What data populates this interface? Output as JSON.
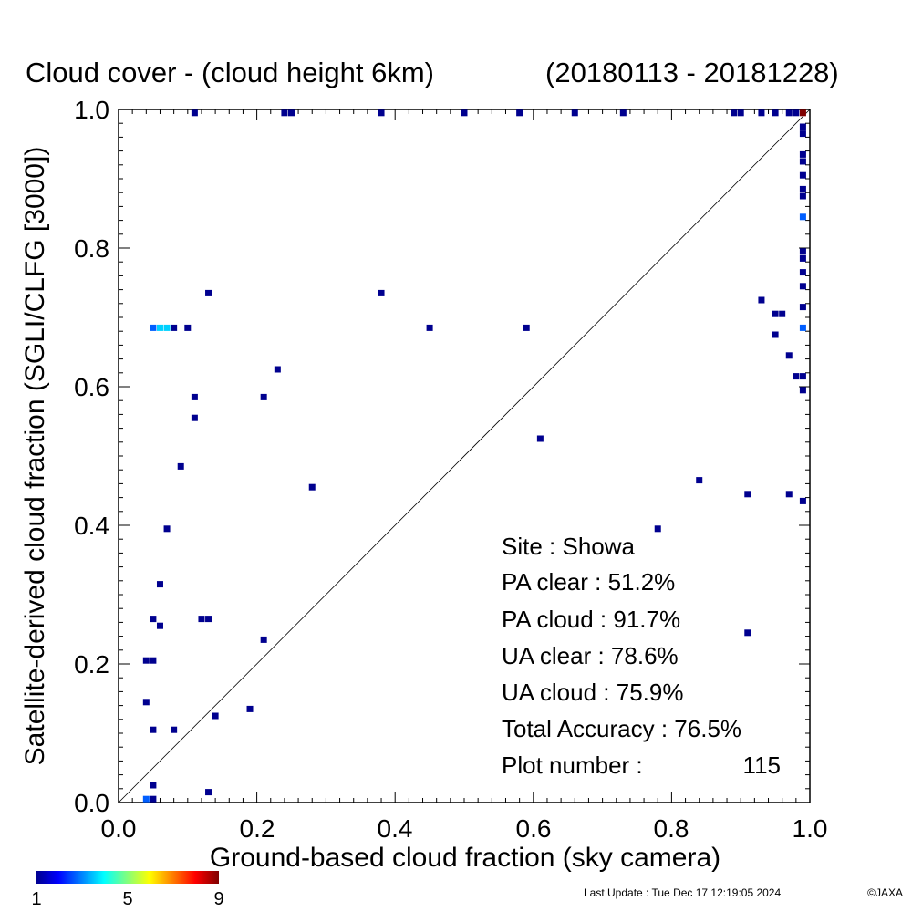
{
  "chart_data": {
    "type": "heatmap",
    "title": "Cloud cover - (cloud height 6km)",
    "period": "(20180113 - 20181228)",
    "xlabel": "Ground-based cloud fraction (sky camera)",
    "ylabel": "Satellite-derived cloud fraction (SGLI/CLFG [3000])",
    "xlim": [
      0.0,
      1.0
    ],
    "ylim": [
      0.0,
      1.0
    ],
    "x_ticks": [
      "0.0",
      "0.2",
      "0.4",
      "0.6",
      "0.8",
      "1.0"
    ],
    "y_ticks": [
      "0.0",
      "0.2",
      "0.4",
      "0.6",
      "0.8",
      "1.0"
    ],
    "reference_line": "1:1 diagonal",
    "colorbar": {
      "min": 1,
      "max": 9,
      "ticks": [
        "1",
        "5",
        "9"
      ]
    },
    "points": [
      {
        "x": 0.04,
        "y": 0.005,
        "count": 2
      },
      {
        "x": 0.05,
        "y": 0.005,
        "count": 1
      },
      {
        "x": 0.05,
        "y": 0.025,
        "count": 1
      },
      {
        "x": 0.13,
        "y": 0.015,
        "count": 1
      },
      {
        "x": 0.05,
        "y": 0.105,
        "count": 1
      },
      {
        "x": 0.08,
        "y": 0.105,
        "count": 1
      },
      {
        "x": 0.04,
        "y": 0.145,
        "count": 1
      },
      {
        "x": 0.14,
        "y": 0.125,
        "count": 1
      },
      {
        "x": 0.19,
        "y": 0.135,
        "count": 1
      },
      {
        "x": 0.04,
        "y": 0.205,
        "count": 1
      },
      {
        "x": 0.05,
        "y": 0.205,
        "count": 1
      },
      {
        "x": 0.21,
        "y": 0.235,
        "count": 1
      },
      {
        "x": 0.05,
        "y": 0.265,
        "count": 1
      },
      {
        "x": 0.06,
        "y": 0.255,
        "count": 1
      },
      {
        "x": 0.12,
        "y": 0.265,
        "count": 1
      },
      {
        "x": 0.13,
        "y": 0.265,
        "count": 1
      },
      {
        "x": 0.06,
        "y": 0.315,
        "count": 1
      },
      {
        "x": 0.07,
        "y": 0.395,
        "count": 1
      },
      {
        "x": 0.09,
        "y": 0.485,
        "count": 1
      },
      {
        "x": 0.11,
        "y": 0.555,
        "count": 1
      },
      {
        "x": 0.11,
        "y": 0.585,
        "count": 1
      },
      {
        "x": 0.21,
        "y": 0.585,
        "count": 1
      },
      {
        "x": 0.23,
        "y": 0.625,
        "count": 1
      },
      {
        "x": 0.28,
        "y": 0.455,
        "count": 1
      },
      {
        "x": 0.05,
        "y": 0.685,
        "count": 2
      },
      {
        "x": 0.06,
        "y": 0.685,
        "count": 3
      },
      {
        "x": 0.07,
        "y": 0.685,
        "count": 3
      },
      {
        "x": 0.08,
        "y": 0.685,
        "count": 1
      },
      {
        "x": 0.1,
        "y": 0.685,
        "count": 1
      },
      {
        "x": 0.13,
        "y": 0.735,
        "count": 1
      },
      {
        "x": 0.38,
        "y": 0.735,
        "count": 1
      },
      {
        "x": 0.45,
        "y": 0.685,
        "count": 1
      },
      {
        "x": 0.59,
        "y": 0.685,
        "count": 1
      },
      {
        "x": 0.61,
        "y": 0.525,
        "count": 1
      },
      {
        "x": 0.78,
        "y": 0.395,
        "count": 1
      },
      {
        "x": 0.84,
        "y": 0.465,
        "count": 1
      },
      {
        "x": 0.91,
        "y": 0.445,
        "count": 1
      },
      {
        "x": 0.91,
        "y": 0.245,
        "count": 1
      },
      {
        "x": 0.93,
        "y": 0.725,
        "count": 1
      },
      {
        "x": 0.95,
        "y": 0.705,
        "count": 1
      },
      {
        "x": 0.96,
        "y": 0.705,
        "count": 1
      },
      {
        "x": 0.95,
        "y": 0.675,
        "count": 1
      },
      {
        "x": 0.97,
        "y": 0.645,
        "count": 1
      },
      {
        "x": 0.97,
        "y": 0.445,
        "count": 1
      },
      {
        "x": 0.98,
        "y": 0.615,
        "count": 1
      },
      {
        "x": 0.99,
        "y": 0.615,
        "count": 1
      },
      {
        "x": 0.99,
        "y": 0.435,
        "count": 1
      },
      {
        "x": 0.99,
        "y": 0.595,
        "count": 1
      },
      {
        "x": 0.99,
        "y": 0.685,
        "count": 2
      },
      {
        "x": 0.99,
        "y": 0.715,
        "count": 1
      },
      {
        "x": 0.99,
        "y": 0.745,
        "count": 1
      },
      {
        "x": 0.99,
        "y": 0.765,
        "count": 1
      },
      {
        "x": 0.99,
        "y": 0.785,
        "count": 1
      },
      {
        "x": 0.99,
        "y": 0.795,
        "count": 1
      },
      {
        "x": 0.99,
        "y": 0.845,
        "count": 2
      },
      {
        "x": 0.99,
        "y": 0.875,
        "count": 1
      },
      {
        "x": 0.99,
        "y": 0.885,
        "count": 1
      },
      {
        "x": 0.99,
        "y": 0.905,
        "count": 1
      },
      {
        "x": 0.99,
        "y": 0.925,
        "count": 1
      },
      {
        "x": 0.99,
        "y": 0.935,
        "count": 1
      },
      {
        "x": 0.99,
        "y": 0.965,
        "count": 1
      },
      {
        "x": 0.99,
        "y": 0.975,
        "count": 1
      },
      {
        "x": 0.11,
        "y": 0.995,
        "count": 1
      },
      {
        "x": 0.24,
        "y": 0.995,
        "count": 1
      },
      {
        "x": 0.25,
        "y": 0.995,
        "count": 1
      },
      {
        "x": 0.38,
        "y": 0.995,
        "count": 1
      },
      {
        "x": 0.5,
        "y": 0.995,
        "count": 1
      },
      {
        "x": 0.58,
        "y": 0.995,
        "count": 1
      },
      {
        "x": 0.66,
        "y": 0.995,
        "count": 1
      },
      {
        "x": 0.73,
        "y": 0.995,
        "count": 1
      },
      {
        "x": 0.89,
        "y": 0.995,
        "count": 1
      },
      {
        "x": 0.9,
        "y": 0.995,
        "count": 1
      },
      {
        "x": 0.93,
        "y": 0.995,
        "count": 1
      },
      {
        "x": 0.95,
        "y": 0.995,
        "count": 1
      },
      {
        "x": 0.97,
        "y": 0.995,
        "count": 1
      },
      {
        "x": 0.98,
        "y": 0.995,
        "count": 1
      },
      {
        "x": 0.99,
        "y": 0.995,
        "count": 9
      }
    ],
    "stats": {
      "site": "Site : Showa",
      "pa_clear": "PA clear :  51.2%",
      "pa_cloud": "PA cloud :  91.7%",
      "ua_clear": "UA clear :  78.6%",
      "ua_cloud": "UA cloud :  75.9%",
      "total_accuracy": "Total Accuracy :  76.5%",
      "plot_number_label": "Plot number :",
      "plot_number_value": "115"
    }
  },
  "footer": {
    "last_update": "Last Update : Tue Dec 17 12:19:05 2024",
    "copyright": "©JAXA"
  }
}
